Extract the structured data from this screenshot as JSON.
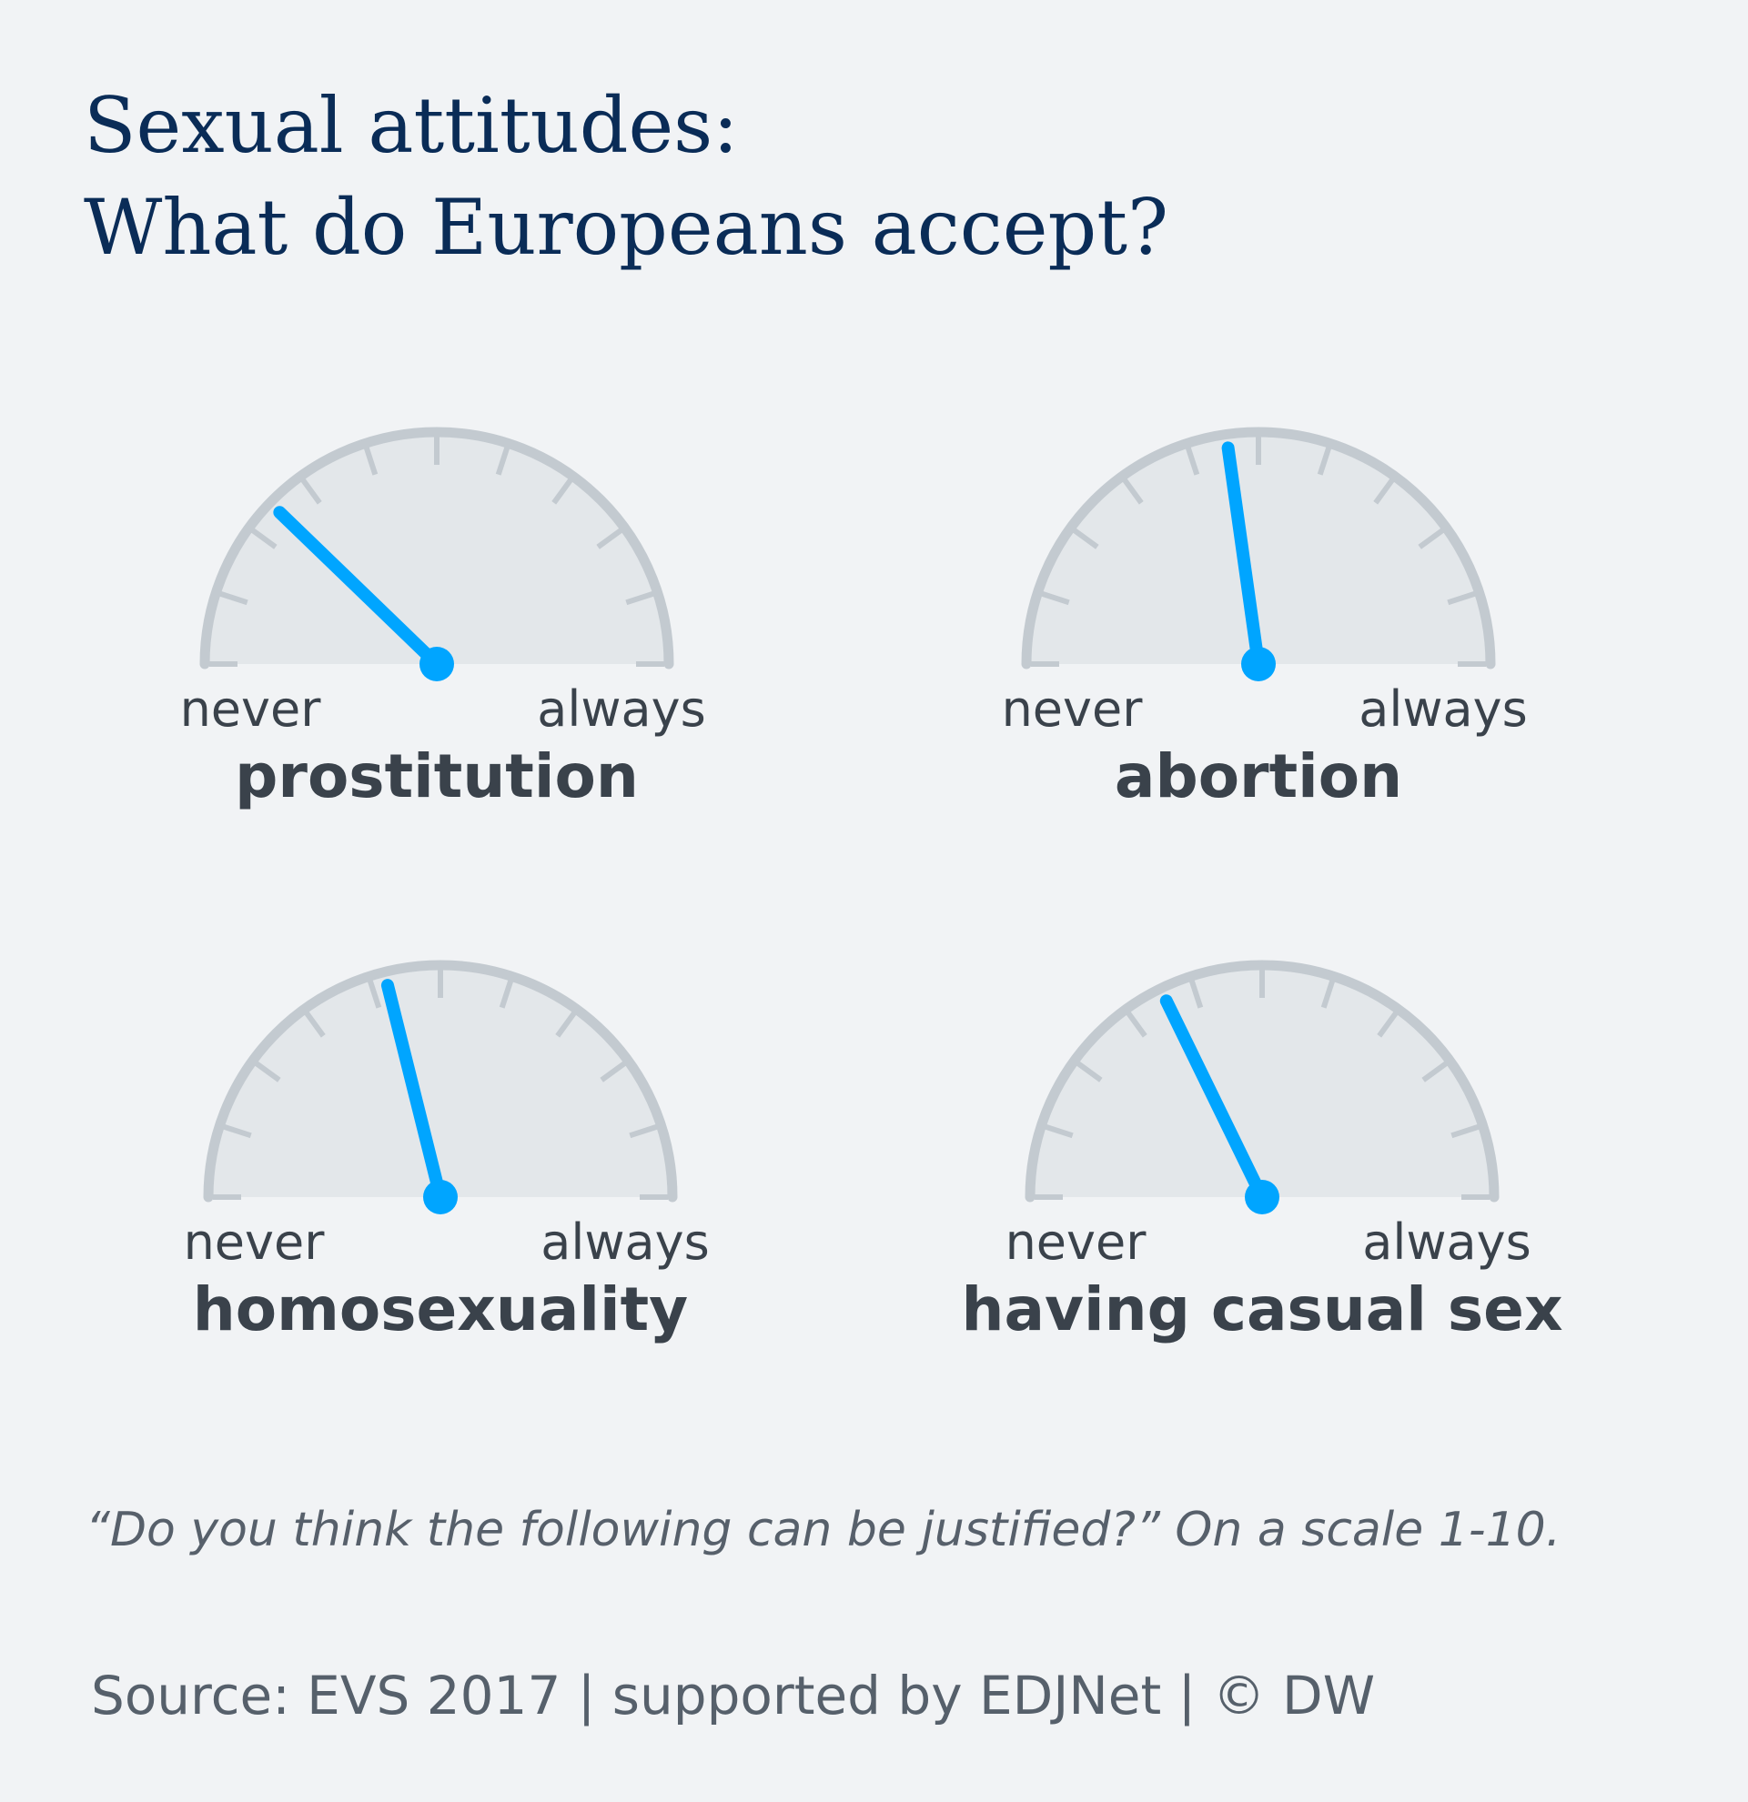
{
  "title": {
    "line1": "Sexual attitudes:",
    "line2": "What do Europeans accept?"
  },
  "chart_data": {
    "type": "gauge",
    "scale_min": 1,
    "scale_max": 10,
    "min_label": "never",
    "max_label": "always",
    "gauges": [
      {
        "label": "prostitution",
        "value": 3.2
      },
      {
        "label": "abortion",
        "value": 5.1
      },
      {
        "label": "homosexuality",
        "value": 4.8
      },
      {
        "label": "having casual sex",
        "value": 4.2
      }
    ]
  },
  "colors": {
    "background": "#f1f3f5",
    "dial_fill": "#e3e7ea",
    "dial_rim": "#c3cad0",
    "needle": "#00a5ff",
    "title": "#0a2c57",
    "labels": "#3a424b"
  },
  "note": "“Do you think the following can be justified?” On a scale 1-10.",
  "source": "Source: EVS 2017 | supported by EDJNet | © DW"
}
